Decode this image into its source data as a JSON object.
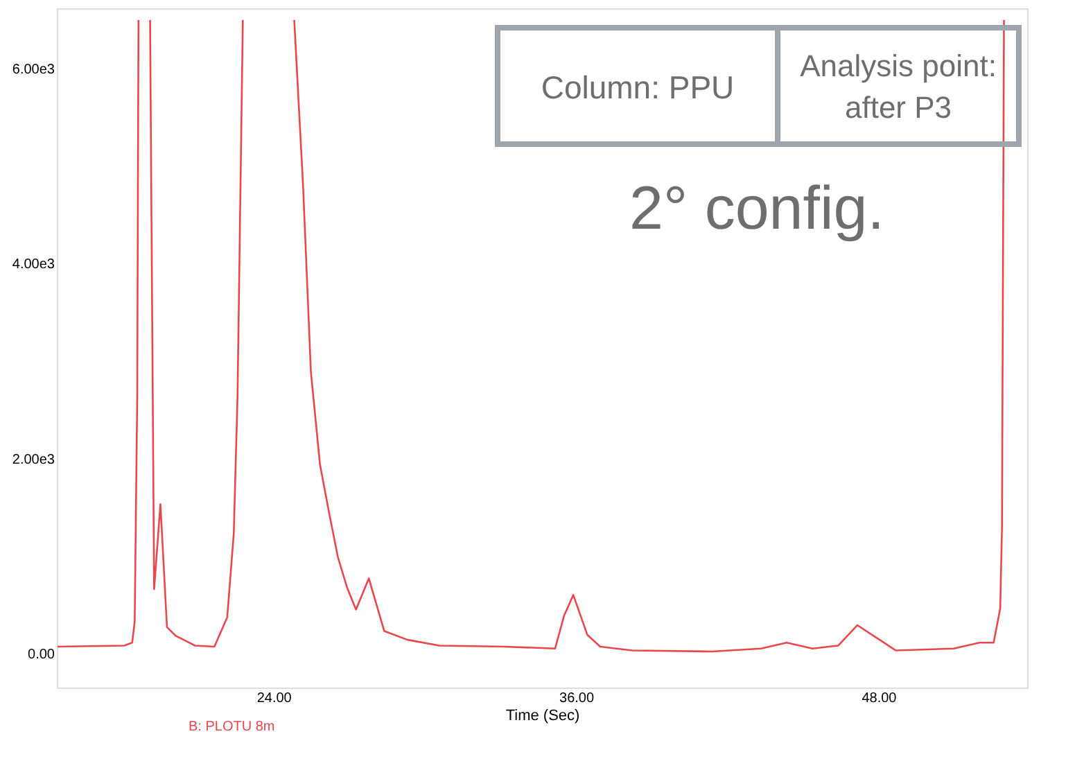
{
  "chart_data": {
    "type": "line",
    "xlabel": "Time (Sec)",
    "x": [
      15.43,
      18.08,
      18.39,
      18.49,
      18.59,
      18.64,
      19.05,
      19.1,
      19.26,
      19.51,
      19.77,
      20.12,
      20.89,
      21.65,
      22.16,
      22.42,
      22.57,
      22.78,
      23.8,
      24.82,
      25.17,
      25.48,
      25.84,
      26.19,
      26.55,
      26.91,
      27.27,
      27.78,
      28.39,
      29.31,
      30.58,
      33.13,
      35.17,
      35.53,
      35.89,
      36.45,
      36.96,
      38.23,
      41.4,
      43.34,
      44.36,
      45.38,
      46.4,
      47.16,
      47.93,
      48.69,
      50.99,
      52.01,
      52.57,
      52.83,
      52.9,
      52.98
    ],
    "series": [
      {
        "name": "B: PLOTU 8m",
        "color": "#e8474c",
        "values": [
          70,
          80,
          110,
          330,
          2640,
          6500,
          null,
          6500,
          660,
          1530,
          270,
          180,
          80,
          70,
          370,
          1230,
          2640,
          6500,
          null,
          6500,
          4800,
          2890,
          1940,
          1460,
          990,
          680,
          450,
          770,
          230,
          140,
          80,
          70,
          50,
          390,
          600,
          190,
          70,
          30,
          20,
          50,
          110,
          50,
          80,
          290,
          160,
          30,
          50,
          110,
          110,
          460,
          1280,
          6500
        ]
      }
    ],
    "xlim": [
      15.4,
      53.9
    ],
    "ylim": [
      -350,
      6620
    ],
    "xticks": [
      {
        "value": 24,
        "label": "24.00"
      },
      {
        "value": 36,
        "label": "36.00"
      },
      {
        "value": 48,
        "label": "48.00"
      }
    ],
    "yticks": [
      {
        "value": 0,
        "label": "0.00"
      },
      {
        "value": 2000,
        "label": "2.00e3"
      },
      {
        "value": 4000,
        "label": "4.00e3"
      },
      {
        "value": 6000,
        "label": "6.00e3"
      }
    ],
    "grid": false,
    "annotations": [
      "Column: PPU",
      "Analysis point: after P3",
      "2° config."
    ]
  }
}
